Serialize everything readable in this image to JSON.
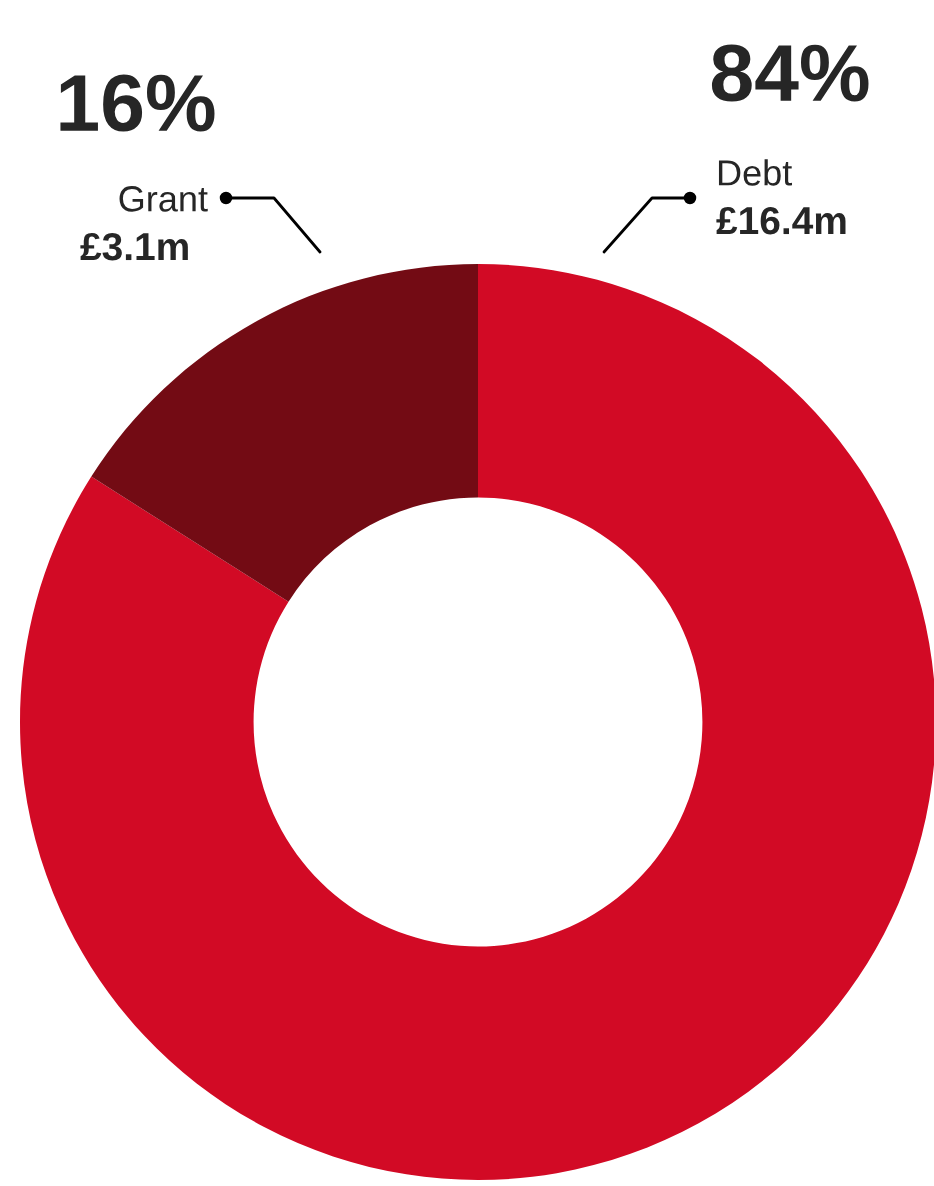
{
  "chart_data": {
    "type": "donut",
    "categories": [
      "Debt",
      "Grant"
    ],
    "values": [
      84,
      16
    ],
    "colors": [
      "#d20a25",
      "#730b14"
    ],
    "value_labels": [
      "84%",
      "16%"
    ],
    "annotations": [
      "£16.4m",
      "£3.1m"
    ],
    "legend": false
  }
}
